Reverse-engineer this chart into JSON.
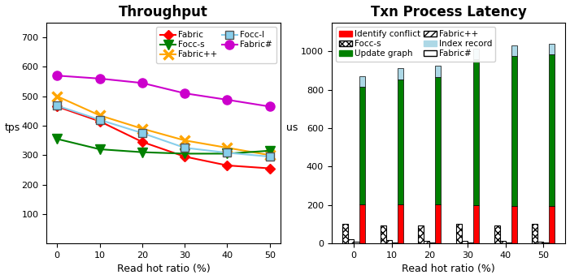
{
  "left_title": "Throughput",
  "right_title": "Txn Process Latency",
  "left_ylabel": "tps",
  "right_ylabel": "us",
  "xlabel": "Read hot ratio (%)",
  "x_ticks": [
    0,
    10,
    20,
    30,
    40,
    50
  ],
  "throughput": {
    "Fabric": [
      465,
      415,
      345,
      295,
      265,
      255
    ],
    "Fabric++": [
      500,
      435,
      390,
      350,
      325,
      300
    ],
    "Fabric#": [
      570,
      560,
      545,
      510,
      488,
      465
    ],
    "Focc-s": [
      355,
      320,
      310,
      305,
      305,
      315
    ],
    "Focc-l": [
      468,
      420,
      375,
      325,
      308,
      295
    ]
  },
  "latency_x": [
    0,
    10,
    20,
    30,
    40,
    50
  ],
  "latency_bars": {
    "Focc-s_total": [
      100,
      95,
      95,
      100,
      95,
      100
    ],
    "Fabric_pp_total": [
      20,
      18,
      15,
      12,
      12,
      10
    ],
    "Fabric_hash_total": [
      8,
      7,
      7,
      6,
      6,
      5
    ],
    "Fabric_identify": [
      205,
      205,
      205,
      198,
      195,
      195
    ],
    "Fabric_update": [
      610,
      650,
      660,
      760,
      780,
      790
    ],
    "Fabric_index": [
      55,
      60,
      60,
      55,
      55,
      55
    ]
  },
  "colors": {
    "Fabric": "#FF0000",
    "Fabric++": "#FFA500",
    "Fabric#": "#CC00CC",
    "Focc-s": "#008000",
    "Focc-l": "#87CEEB",
    "identify_conflict": "#FF0000",
    "update_graph": "#008000",
    "index_record": "#ADD8E6"
  }
}
